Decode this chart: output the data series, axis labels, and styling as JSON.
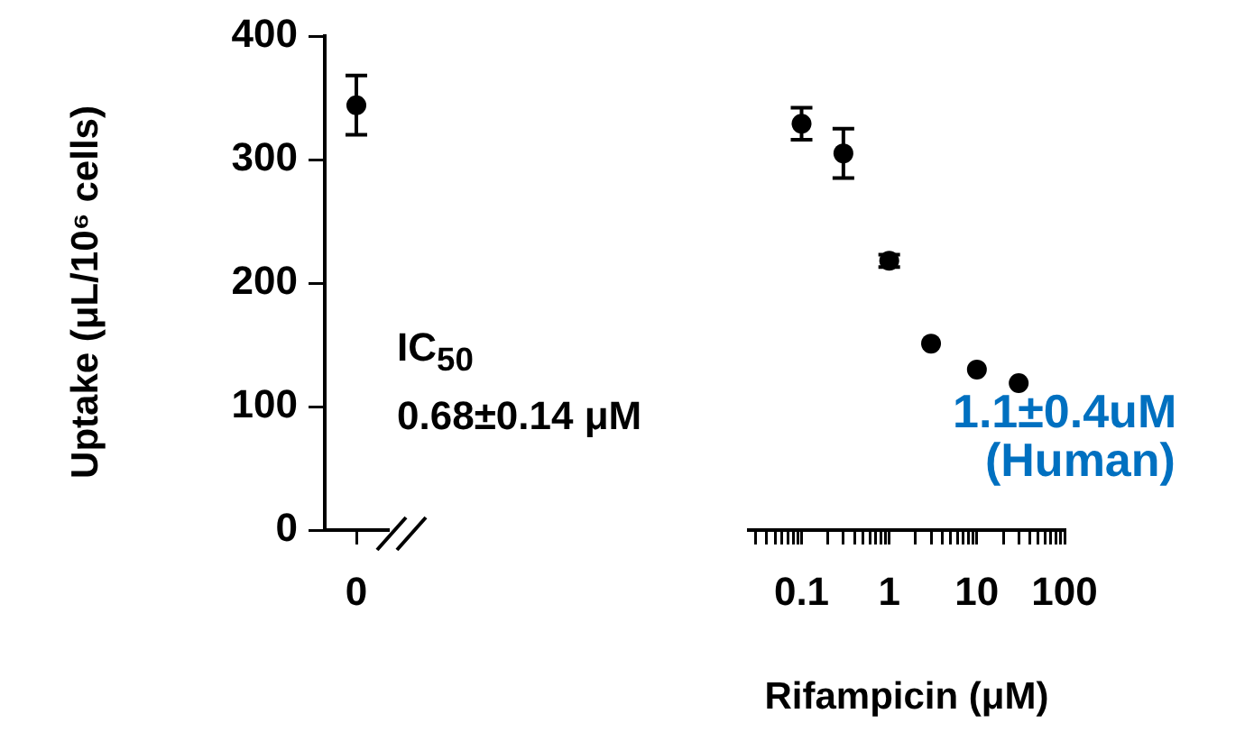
{
  "chart_data": [
    {
      "type": "scatter",
      "ylabel": "Uptake (μL/10⁶ cells)",
      "categories": [
        "0"
      ],
      "values": [
        344
      ],
      "errors": [
        24
      ],
      "color": "#000000",
      "ylim": [
        0,
        400
      ],
      "yticks": [
        0,
        100,
        200,
        300,
        400
      ],
      "grid": false,
      "legend": false,
      "marker": "circle"
    },
    {
      "type": "scatter",
      "xlabel": "Rifampicin (μM)",
      "x": [
        0.1,
        0.3,
        1,
        3,
        10,
        30
      ],
      "values": [
        329,
        305,
        218,
        151,
        130,
        119
      ],
      "errors": [
        13,
        20,
        5,
        null,
        null,
        null
      ],
      "color": "#000000",
      "xlim": [
        0.025,
        100
      ],
      "ylim": [
        0,
        400
      ],
      "log": "x",
      "xticks": [
        {
          "value": 0.03,
          "label": null
        },
        {
          "value": 0.04,
          "label": null
        },
        {
          "value": 0.05,
          "label": null
        },
        {
          "value": 0.06,
          "label": null
        },
        {
          "value": 0.07,
          "label": null
        },
        {
          "value": 0.08,
          "label": null
        },
        {
          "value": 0.09,
          "label": null
        },
        0.1,
        {
          "value": 0.2,
          "label": null
        },
        {
          "value": 0.3,
          "label": null
        },
        {
          "value": 0.4,
          "label": null
        },
        {
          "value": 0.5,
          "label": null
        },
        {
          "value": 0.6,
          "label": null
        },
        {
          "value": 0.7,
          "label": null
        },
        {
          "value": 0.8,
          "label": null
        },
        {
          "value": 0.9,
          "label": null
        },
        1,
        {
          "value": 2,
          "label": null
        },
        {
          "value": 3,
          "label": null
        },
        {
          "value": 4,
          "label": null
        },
        {
          "value": 5,
          "label": null
        },
        {
          "value": 6,
          "label": null
        },
        {
          "value": 7,
          "label": null
        },
        {
          "value": 8,
          "label": null
        },
        {
          "value": 9,
          "label": null
        },
        10,
        {
          "value": 20,
          "label": null
        },
        {
          "value": 30,
          "label": null
        },
        {
          "value": 40,
          "label": null
        },
        {
          "value": 50,
          "label": null
        },
        {
          "value": 60,
          "label": null
        },
        {
          "value": 70,
          "label": null
        },
        {
          "value": 80,
          "label": null
        },
        {
          "value": 90,
          "label": null
        },
        100
      ],
      "tick_labels": "x",
      "grid": false,
      "legend": false,
      "marker": "circle",
      "annotations": [
        "IC$_{50}$",
        "0.68±0.14 μM",
        "1.1±0.4uM",
        "(Human)"
      ]
    }
  ]
}
